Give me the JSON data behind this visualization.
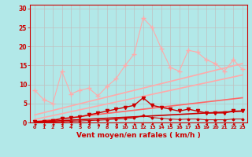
{
  "background_color": "#b2e8e8",
  "grid_color": "#c0c0c0",
  "xlabel": "Vent moyen/en rafales ( km/h )",
  "xlabel_color": "#cc0000",
  "tick_color": "#cc0000",
  "x_ticks": [
    0,
    1,
    2,
    3,
    4,
    5,
    6,
    7,
    8,
    9,
    10,
    11,
    12,
    13,
    14,
    15,
    16,
    17,
    18,
    19,
    20,
    21,
    22,
    23
  ],
  "y_ticks": [
    0,
    5,
    10,
    15,
    20,
    25,
    30
  ],
  "ylim": [
    0,
    31
  ],
  "xlim": [
    -0.5,
    23.5
  ],
  "line1_y": [
    8.5,
    6.0,
    5.0,
    13.5,
    7.5,
    8.5,
    9.0,
    7.0,
    9.5,
    11.5,
    15.0,
    18.0,
    27.5,
    25.0,
    19.5,
    14.5,
    13.5,
    19.0,
    18.5,
    16.5,
    15.5,
    13.5,
    16.5,
    14.0
  ],
  "line1_color": "#ffaaaa",
  "line1_marker": "+",
  "line1_markersize": 4,
  "line1_linewidth": 0.8,
  "line2_y": [
    0.3,
    0.3,
    0.5,
    1.0,
    1.2,
    1.5,
    2.0,
    2.5,
    3.0,
    3.5,
    4.0,
    4.5,
    6.5,
    4.5,
    4.0,
    3.5,
    3.0,
    3.5,
    3.0,
    2.5,
    2.5,
    2.5,
    3.0,
    3.0
  ],
  "line2_color": "#cc0000",
  "line2_marker": "v",
  "line2_markersize": 3,
  "line2_linewidth": 1.0,
  "line3_y": [
    0.05,
    0.05,
    0.1,
    0.2,
    0.3,
    0.4,
    0.5,
    0.6,
    0.7,
    0.9,
    1.0,
    1.2,
    1.8,
    1.3,
    1.1,
    0.9,
    0.8,
    0.9,
    0.9,
    0.7,
    0.7,
    0.7,
    0.9,
    0.9
  ],
  "line3_color": "#cc0000",
  "line3_marker": "D",
  "line3_markersize": 1.5,
  "line3_linewidth": 0.7,
  "trend1_x": [
    0,
    23
  ],
  "trend1_y": [
    2.0,
    15.5
  ],
  "trend1_color": "#ffaaaa",
  "trend1_linewidth": 1.2,
  "trend2_x": [
    0,
    23
  ],
  "trend2_y": [
    0.8,
    12.5
  ],
  "trend2_color": "#ffaaaa",
  "trend2_linewidth": 1.2,
  "trend3_x": [
    0,
    23
  ],
  "trend3_y": [
    0.2,
    6.5
  ],
  "trend3_color": "#ff6666",
  "trend3_linewidth": 1.2,
  "trend4_x": [
    0,
    23
  ],
  "trend4_y": [
    0.1,
    3.0
  ],
  "trend4_color": "#cc0000",
  "trend4_linewidth": 1.2,
  "arrow_angles": [
    225,
    202,
    225,
    247,
    225,
    270,
    247,
    202,
    270,
    225,
    247,
    225,
    90,
    270,
    247,
    225,
    247,
    315,
    225,
    247,
    247,
    270,
    247,
    247
  ]
}
